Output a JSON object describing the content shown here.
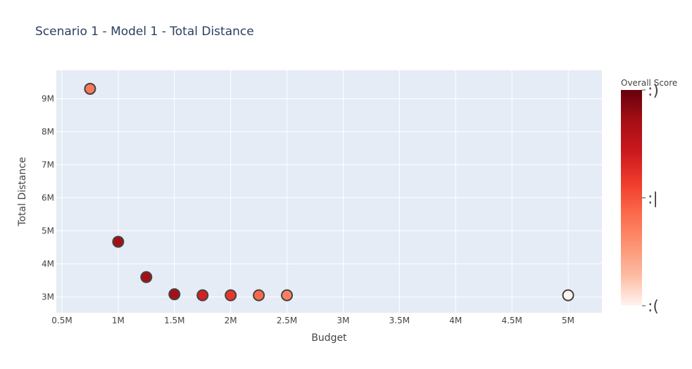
{
  "chart_data": {
    "type": "scatter",
    "title": "Scenario 1 - Model 1 - Total Distance",
    "xlabel": "Budget",
    "ylabel": "Total Distance",
    "xlim": [
      450000,
      5300000
    ],
    "ylim": [
      2520000,
      9860000
    ],
    "grid": true,
    "x_ticks": [
      {
        "value": 500000,
        "label": "0.5M"
      },
      {
        "value": 1000000,
        "label": "1M"
      },
      {
        "value": 1500000,
        "label": "1.5M"
      },
      {
        "value": 2000000,
        "label": "2M"
      },
      {
        "value": 2500000,
        "label": "2.5M"
      },
      {
        "value": 3000000,
        "label": "3M"
      },
      {
        "value": 3500000,
        "label": "3.5M"
      },
      {
        "value": 4000000,
        "label": "4M"
      },
      {
        "value": 4500000,
        "label": "4.5M"
      },
      {
        "value": 5000000,
        "label": "5M"
      }
    ],
    "y_ticks": [
      {
        "value": 3000000,
        "label": "3M"
      },
      {
        "value": 4000000,
        "label": "4M"
      },
      {
        "value": 5000000,
        "label": "5M"
      },
      {
        "value": 6000000,
        "label": "6M"
      },
      {
        "value": 7000000,
        "label": "7M"
      },
      {
        "value": 8000000,
        "label": "8M"
      },
      {
        "value": 9000000,
        "label": "9M"
      }
    ],
    "points": [
      {
        "x": 750000,
        "y": 9300000,
        "color": "#fb7858"
      },
      {
        "x": 1000000,
        "y": 4670000,
        "color": "#a50f15"
      },
      {
        "x": 1250000,
        "y": 3600000,
        "color": "#a50f15"
      },
      {
        "x": 1500000,
        "y": 3080000,
        "color": "#a50f15"
      },
      {
        "x": 1750000,
        "y": 3050000,
        "color": "#d42020"
      },
      {
        "x": 2000000,
        "y": 3050000,
        "color": "#e9362a"
      },
      {
        "x": 2250000,
        "y": 3050000,
        "color": "#fb6a4a"
      },
      {
        "x": 2500000,
        "y": 3050000,
        "color": "#fc8060"
      },
      {
        "x": 5000000,
        "y": 3050000,
        "color": "#fff5f0"
      }
    ],
    "marker_outline_color": "#444444",
    "colorbar": {
      "title": "Overall Score",
      "colorscale": [
        "#fff5f0",
        "#fcbba1",
        "#fc9272",
        "#fb6a4a",
        "#ef3b2c",
        "#cb181d",
        "#a50f15",
        "#67000d"
      ],
      "ticks": [
        {
          "position": 1.0,
          "label": ":)"
        },
        {
          "position": 0.5,
          "label": ":|"
        },
        {
          "position": 0.0,
          "label": ":("
        }
      ]
    },
    "plot_background": "#e5ecf6"
  }
}
